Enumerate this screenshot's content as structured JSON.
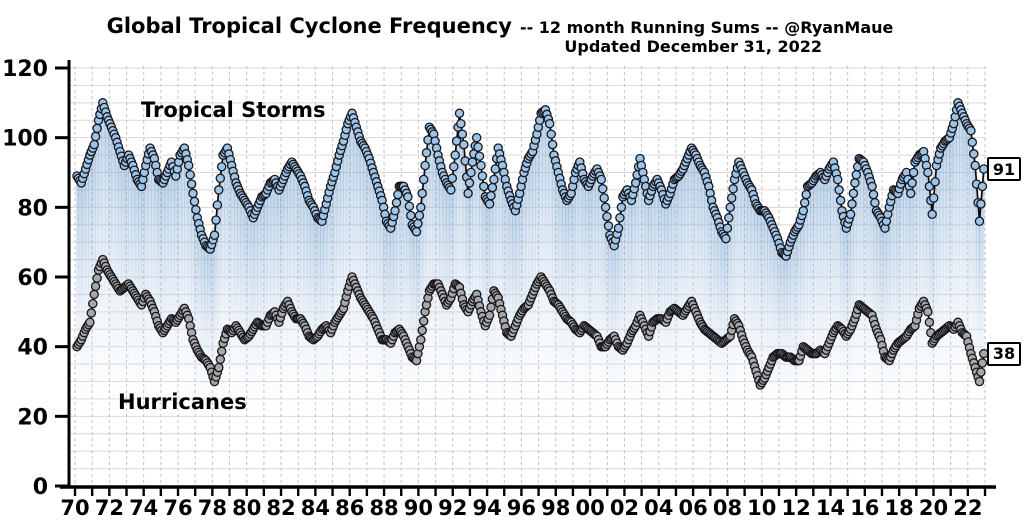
{
  "title": {
    "main": "Global Tropical Cyclone Frequency",
    "subtitle": "-- 12 month Running Sums -- @RyanMaue",
    "updated": "Updated December 31, 2022"
  },
  "labels": {
    "storms": "Tropical Storms",
    "hurricanes": "Hurricanes"
  },
  "chart_data": {
    "type": "line",
    "title": "Global Tropical Cyclone Frequency -- 12 month Running Sums -- @RyanMaue",
    "subtitle": "Updated December 31, 2022",
    "x_start_year": 1970,
    "x_end_year": 2022,
    "points_per_year": 4,
    "ylim": [
      0,
      120
    ],
    "ytick_values": [
      0,
      20,
      40,
      60,
      80,
      100,
      120
    ],
    "xtick_labels": [
      "70",
      "72",
      "74",
      "76",
      "78",
      "80",
      "82",
      "84",
      "86",
      "88",
      "90",
      "92",
      "94",
      "96",
      "98",
      "00",
      "02",
      "04",
      "06",
      "08",
      "10",
      "12",
      "14",
      "16",
      "18",
      "20",
      "22"
    ],
    "grid": {
      "horizontal_step": 5,
      "vertical": "yearly-dashed",
      "h_color": "#dadada",
      "v_color": "#c2c2c2"
    },
    "legend_position": "in-plot-text-labels",
    "colors": {
      "storm_marker": "#9DC4E7",
      "hurricane_marker": "#A7A7A7",
      "marker_outline": "#16161d",
      "line": "#0a0a0a",
      "dropline": "#7FA8D0",
      "axis": "#000000"
    },
    "end_labels": {
      "storms": 91,
      "hurricanes": 38
    },
    "series": [
      {
        "name": "Tropical Storms",
        "values": [
          89,
          87,
          91,
          95,
          98,
          105,
          110,
          106,
          103,
          100,
          96,
          92,
          95,
          92,
          88,
          86,
          92,
          97,
          94,
          88,
          87,
          90,
          93,
          89,
          95,
          97,
          92,
          84,
          77,
          72,
          69,
          68,
          72,
          85,
          95,
          97,
          92,
          87,
          84,
          82,
          80,
          77,
          80,
          83,
          84,
          87,
          88,
          85,
          88,
          91,
          93,
          91,
          89,
          86,
          82,
          80,
          77,
          76,
          81,
          86,
          90,
          95,
          99,
          104,
          107,
          103,
          99,
          97,
          94,
          90,
          86,
          82,
          76,
          74,
          79,
          86,
          86,
          83,
          75,
          73,
          80,
          92,
          103,
          101,
          95,
          90,
          87,
          85,
          95,
          107,
          98,
          84,
          93,
          100,
          92,
          83,
          81,
          88,
          97,
          92,
          86,
          82,
          79,
          84,
          90,
          94,
          96,
          101,
          107,
          108,
          104,
          95,
          90,
          85,
          82,
          84,
          90,
          93,
          88,
          86,
          89,
          91,
          88,
          80,
          72,
          69,
          74,
          83,
          85,
          82,
          87,
          94,
          88,
          82,
          86,
          88,
          85,
          81,
          84,
          88,
          89,
          91,
          94,
          97,
          95,
          92,
          90,
          86,
          80,
          77,
          73,
          71,
          80,
          88,
          93,
          90,
          87,
          85,
          81,
          79,
          79,
          77,
          74,
          71,
          67,
          66,
          70,
          73,
          75,
          79,
          86,
          87,
          89,
          90,
          88,
          91,
          93,
          88,
          79,
          74,
          78,
          87,
          94,
          93,
          90,
          86,
          79,
          77,
          74,
          80,
          85,
          84,
          88,
          90,
          84,
          93,
          95,
          96,
          90,
          78,
          92,
          97,
          99,
          100,
          104,
          110,
          107,
          104,
          102,
          92,
          76,
          91
        ]
      },
      {
        "name": "Hurricanes",
        "values": [
          40,
          42,
          45,
          47,
          55,
          62,
          65,
          62,
          60,
          58,
          56,
          57,
          58,
          56,
          54,
          52,
          55,
          53,
          50,
          46,
          44,
          46,
          48,
          47,
          49,
          51,
          48,
          42,
          39,
          37,
          36,
          34,
          30,
          34,
          41,
          45,
          44,
          46,
          44,
          42,
          43,
          45,
          47,
          46,
          46,
          49,
          50,
          47,
          51,
          53,
          50,
          48,
          48,
          46,
          43,
          42,
          43,
          45,
          46,
          44,
          47,
          49,
          51,
          56,
          60,
          57,
          54,
          52,
          50,
          48,
          45,
          42,
          42,
          41,
          44,
          45,
          43,
          40,
          37,
          36,
          42,
          50,
          56,
          58,
          58,
          55,
          52,
          54,
          58,
          57,
          52,
          50,
          53,
          55,
          50,
          46,
          49,
          56,
          54,
          49,
          44,
          43,
          46,
          49,
          51,
          52,
          55,
          58,
          60,
          58,
          56,
          53,
          52,
          50,
          48,
          47,
          45,
          44,
          46,
          45,
          44,
          43,
          40,
          40,
          42,
          43,
          40,
          39,
          41,
          44,
          46,
          49,
          46,
          43,
          47,
          48,
          48,
          47,
          50,
          51,
          50,
          49,
          51,
          53,
          50,
          47,
          45,
          44,
          43,
          42,
          41,
          42,
          43,
          48,
          46,
          42,
          39,
          37,
          33,
          29,
          31,
          34,
          37,
          38,
          38,
          37,
          37,
          36,
          36,
          40,
          39,
          38,
          38,
          39,
          38,
          41,
          44,
          46,
          45,
          43,
          45,
          48,
          52,
          51,
          50,
          49,
          45,
          42,
          37,
          36,
          39,
          41,
          42,
          43,
          45,
          46,
          51,
          53,
          50,
          41,
          43,
          44,
          45,
          46,
          45,
          47,
          44,
          43,
          38,
          34,
          30,
          38
        ]
      }
    ]
  }
}
